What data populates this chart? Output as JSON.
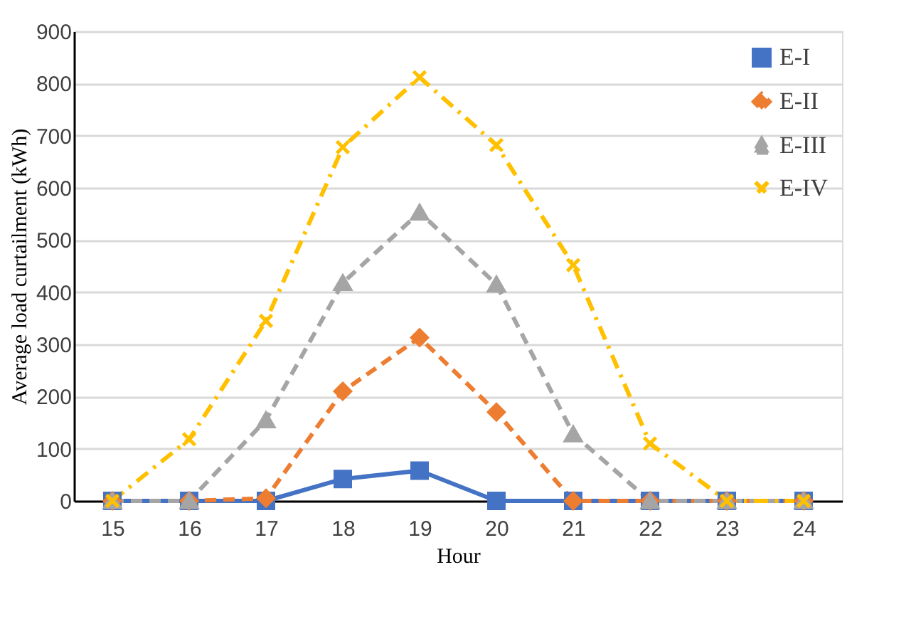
{
  "chart_data": {
    "type": "line",
    "xlabel": "Hour",
    "ylabel": "Average load curtailment (kWh)",
    "categories": [
      "15",
      "16",
      "17",
      "18",
      "19",
      "20",
      "21",
      "22",
      "23",
      "24"
    ],
    "series": [
      {
        "name": "E-I",
        "color": "#4472c4",
        "marker": "square",
        "line_style": "solid",
        "values": [
          0,
          0,
          0,
          42,
          58,
          0,
          0,
          0,
          0,
          0
        ]
      },
      {
        "name": "E-II",
        "color": "#ed7d31",
        "marker": "diamond",
        "line_style": "dashed",
        "values": [
          0,
          0,
          5,
          210,
          313,
          170,
          0,
          0,
          0,
          0
        ]
      },
      {
        "name": "E-III",
        "color": "#a5a5a5",
        "marker": "triangle",
        "line_style": "dashed",
        "values": [
          0,
          0,
          155,
          418,
          553,
          415,
          128,
          0,
          0,
          0
        ]
      },
      {
        "name": "E-IV",
        "color": "#ffc000",
        "marker": "cross",
        "line_style": "dotted",
        "values": [
          0,
          118,
          345,
          678,
          812,
          682,
          452,
          110,
          0,
          0
        ]
      }
    ],
    "ylim": [
      0,
      900
    ],
    "yticks": [
      0,
      100,
      200,
      300,
      400,
      500,
      600,
      700,
      800,
      900
    ],
    "grid": "y",
    "legend": "top right"
  }
}
